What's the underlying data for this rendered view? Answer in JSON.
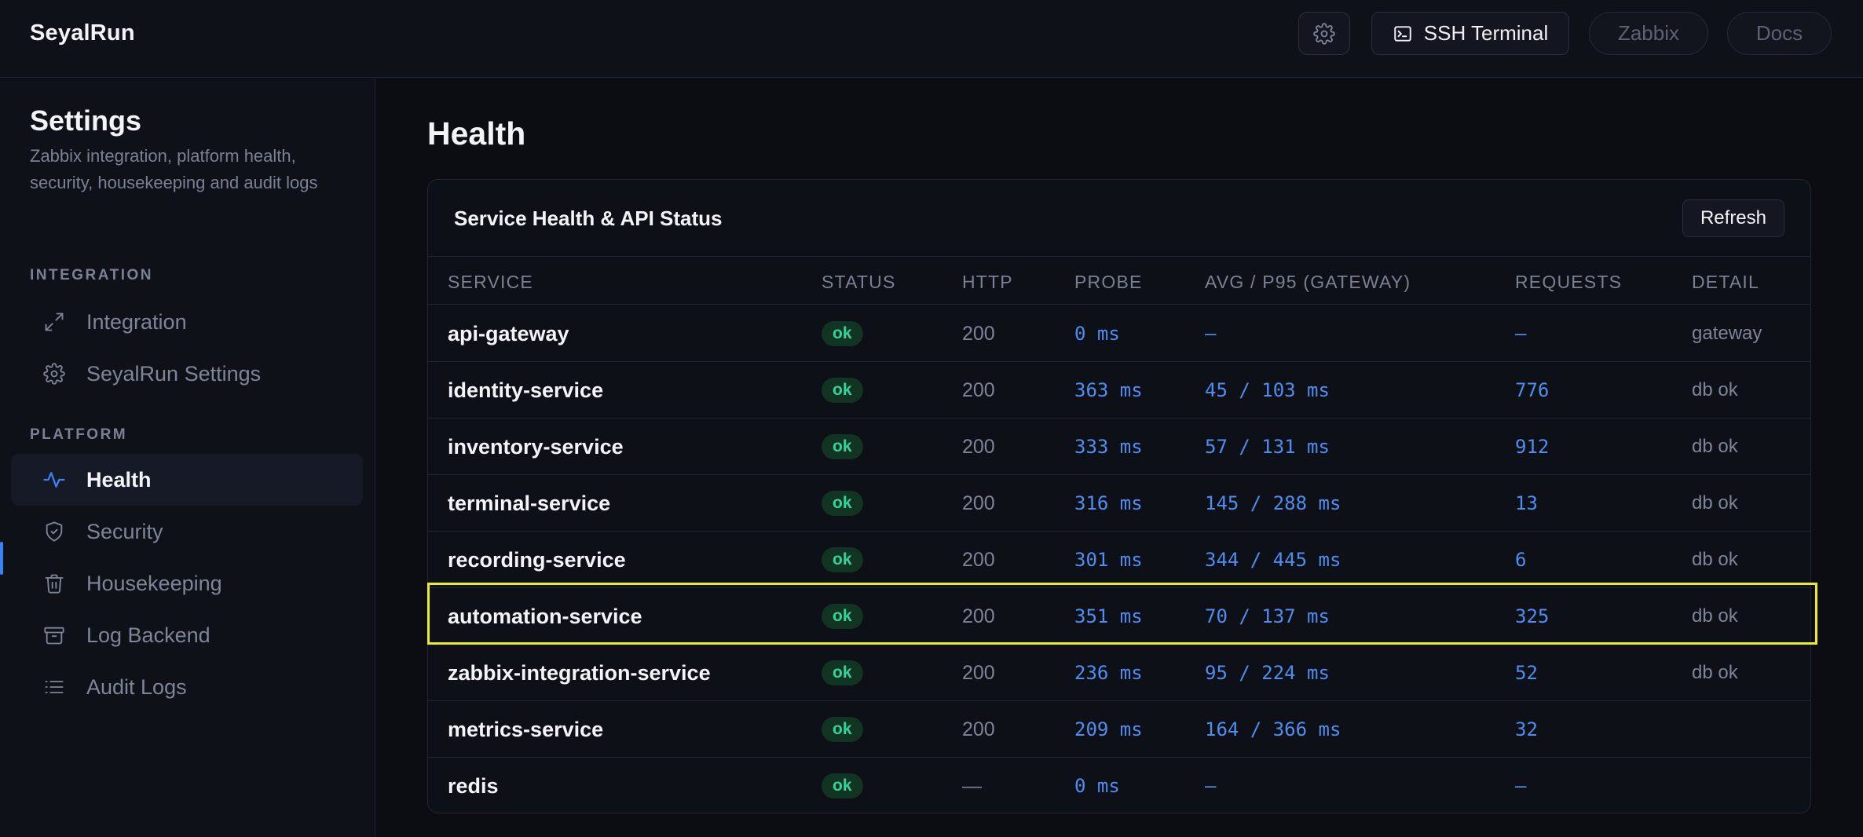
{
  "header": {
    "brand": "SeyalRun",
    "settings_icon": "gear-icon",
    "ssh_label": "SSH Terminal",
    "ssh_icon": "terminal-icon",
    "zabbix_label": "Zabbix",
    "docs_label": "Docs"
  },
  "sidebar": {
    "title": "Settings",
    "description": "Zabbix integration, platform health, security, housekeeping and audit logs",
    "sections": [
      {
        "label": "INTEGRATION",
        "items": [
          {
            "label": "Integration",
            "icon": "expand-arrows-icon"
          },
          {
            "label": "SeyalRun Settings",
            "icon": "gear-icon"
          }
        ]
      },
      {
        "label": "PLATFORM",
        "items": [
          {
            "label": "Health",
            "icon": "pulse-icon",
            "active": true
          },
          {
            "label": "Security",
            "icon": "shield-check-icon"
          },
          {
            "label": "Housekeeping",
            "icon": "trash-icon"
          },
          {
            "label": "Log Backend",
            "icon": "archive-icon"
          },
          {
            "label": "Audit Logs",
            "icon": "list-icon"
          }
        ]
      }
    ]
  },
  "main": {
    "title": "Health",
    "card": {
      "title": "Service Health & API Status",
      "refresh_label": "Refresh",
      "columns": [
        "SERVICE",
        "STATUS",
        "HTTP",
        "PROBE",
        "AVG / P95 (GATEWAY)",
        "REQUESTS",
        "DETAIL"
      ],
      "rows": [
        {
          "service": "api-gateway",
          "status": "ok",
          "http": "200",
          "probe": "0 ms",
          "avg_p95": "—",
          "requests": "—",
          "detail": "gateway"
        },
        {
          "service": "identity-service",
          "status": "ok",
          "http": "200",
          "probe": "363 ms",
          "avg_p95": "45 / 103 ms",
          "requests": "776",
          "detail": "db ok"
        },
        {
          "service": "inventory-service",
          "status": "ok",
          "http": "200",
          "probe": "333 ms",
          "avg_p95": "57 / 131 ms",
          "requests": "912",
          "detail": "db ok"
        },
        {
          "service": "terminal-service",
          "status": "ok",
          "http": "200",
          "probe": "316 ms",
          "avg_p95": "145 / 288 ms",
          "requests": "13",
          "detail": "db ok"
        },
        {
          "service": "recording-service",
          "status": "ok",
          "http": "200",
          "probe": "301 ms",
          "avg_p95": "344 / 445 ms",
          "requests": "6",
          "detail": "db ok"
        },
        {
          "service": "automation-service",
          "status": "ok",
          "http": "200",
          "probe": "351 ms",
          "avg_p95": "70 / 137 ms",
          "requests": "325",
          "detail": "db ok"
        },
        {
          "service": "zabbix-integration-service",
          "status": "ok",
          "http": "200",
          "probe": "236 ms",
          "avg_p95": "95 / 224 ms",
          "requests": "52",
          "detail": "db ok"
        },
        {
          "service": "metrics-service",
          "status": "ok",
          "http": "200",
          "probe": "209 ms",
          "avg_p95": "164 / 366 ms",
          "requests": "32",
          "detail": ""
        },
        {
          "service": "redis",
          "status": "ok",
          "http": "—",
          "probe": "0 ms",
          "avg_p95": "—",
          "requests": "—",
          "detail": ""
        }
      ]
    }
  },
  "colors": {
    "accent": "#3b82f6",
    "ok_text": "#34d399",
    "ok_bg": "#123423",
    "highlight": "#ecec2a"
  }
}
